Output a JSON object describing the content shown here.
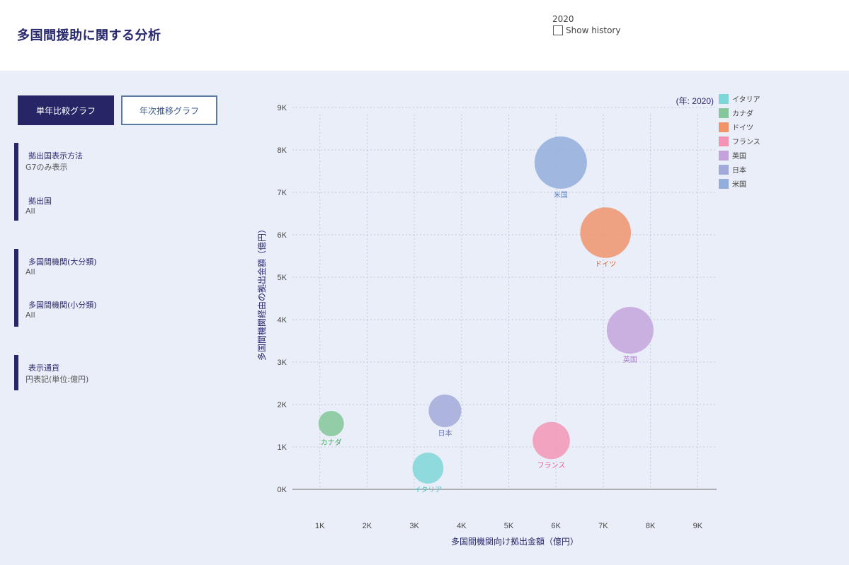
{
  "header": {
    "title": "多国間援助に関する分析",
    "year": "2020",
    "show_history_label": "Show history"
  },
  "buttons": {
    "single_year": "単年比較グラフ",
    "yearly_trend": "年次推移グラフ"
  },
  "filters": {
    "display_method_label": "拠出国表示方法",
    "display_method_value": "G7のみ表示",
    "country_label": "拠出国",
    "country_value": "All",
    "org_major_label": "多国間機関(大分類)",
    "org_major_value": "All",
    "org_minor_label": "多国間機関(小分類)",
    "org_minor_value": "All",
    "currency_label": "表示通貨",
    "currency_value": "円表記(単位:億円)"
  },
  "chart_data": {
    "type": "scatter",
    "annotation": "(年: 2020)",
    "xlabel": "多国間機関向け拠出金額（億円）",
    "ylabel": "多国間機関経由の拠出金額（億円）",
    "x_ticks": [
      "1K",
      "2K",
      "3K",
      "4K",
      "5K",
      "6K",
      "7K",
      "8K",
      "9K"
    ],
    "y_ticks": [
      "0K",
      "1K",
      "2K",
      "3K",
      "4K",
      "5K",
      "6K",
      "7K",
      "8K",
      "9K"
    ],
    "xlim": [
      420,
      9400
    ],
    "ylim": [
      0,
      9000
    ],
    "legend_position": "top-right",
    "series": [
      {
        "name": "イタリア",
        "x": 3290,
        "y": 500,
        "size": 380,
        "color": "#7ed6d8",
        "label_color": "#4fc4c8"
      },
      {
        "name": "カナダ",
        "x": 1240,
        "y": 1550,
        "size": 255,
        "color": "#84c79a",
        "label_color": "#3ba85e"
      },
      {
        "name": "ドイツ",
        "x": 7050,
        "y": 6050,
        "size": 1010,
        "color": "#f0946c",
        "label_color": "#e0622e"
      },
      {
        "name": "フランス",
        "x": 5900,
        "y": 1150,
        "size": 545,
        "color": "#f295b5",
        "label_color": "#e2628f"
      },
      {
        "name": "英国",
        "x": 7570,
        "y": 3750,
        "size": 860,
        "color": "#c4a3dd",
        "label_color": "#a878c8"
      },
      {
        "name": "日本",
        "x": 3650,
        "y": 1850,
        "size": 420,
        "color": "#a2aada",
        "label_color": "#6f7cbd"
      },
      {
        "name": "米国",
        "x": 6100,
        "y": 7700,
        "size": 1080,
        "color": "#93aedc",
        "label_color": "#5b7fbf"
      }
    ]
  }
}
